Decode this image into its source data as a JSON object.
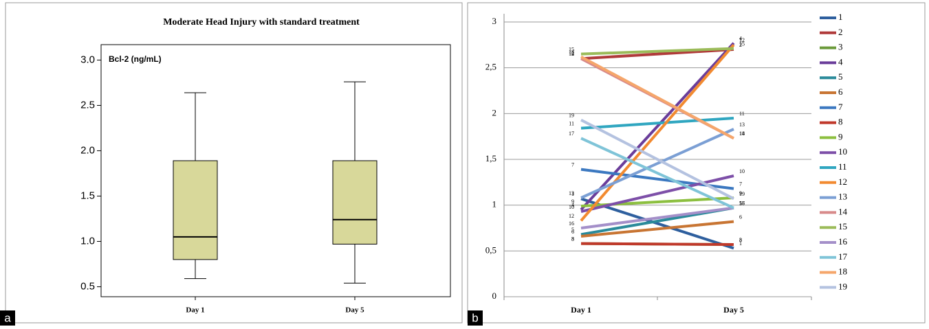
{
  "chart_data": [
    {
      "type": "box",
      "title": "Moderate Head Injury with standard treatment",
      "annotation": "Bcl-2 (ng/mL)",
      "panel": "a",
      "categories": [
        "Day 1",
        "Day 5"
      ],
      "boxes": [
        {
          "whislo": 0.59,
          "q1": 0.8,
          "med": 1.05,
          "q3": 1.89,
          "whishi": 2.64
        },
        {
          "whislo": 0.54,
          "q1": 0.97,
          "med": 1.24,
          "q3": 1.89,
          "whishi": 2.76
        }
      ],
      "color": "#d8d89a",
      "ylim": [
        0.39,
        3.17
      ],
      "yticks": [
        0.5,
        {
          "value": 1,
          "label": "1.0"
        },
        1.5,
        {
          "value": 2,
          "label": "2.0"
        },
        2.5,
        {
          "value": 3,
          "label": "3.0"
        }
      ]
    },
    {
      "type": "line",
      "panel": "b",
      "categories": [
        "Day 1",
        "Day 5"
      ],
      "grid": true,
      "legend": "right",
      "ylim": [
        0,
        3
      ],
      "yticks": [
        0,
        {
          "value": 0.5,
          "label": "0,5"
        },
        1,
        {
          "value": 1.5,
          "label": "1,5"
        },
        2,
        {
          "value": 2.5,
          "label": "2,5"
        },
        3
      ],
      "series": [
        {
          "name": "1",
          "color": "#2e5f9e",
          "values": [
            1.07,
            0.53
          ]
        },
        {
          "name": "2",
          "color": "#b03a3a",
          "values": [
            2.6,
            2.7
          ]
        },
        {
          "name": "3",
          "color": "#6b9a3a",
          "values": [
            0.58,
            0.57
          ]
        },
        {
          "name": "4",
          "color": "#6a3d9a",
          "values": [
            0.95,
            2.77
          ]
        },
        {
          "name": "5",
          "color": "#2a8a9a",
          "values": [
            0.68,
            0.97
          ]
        },
        {
          "name": "6",
          "color": "#c87533",
          "values": [
            0.66,
            0.82
          ]
        },
        {
          "name": "7",
          "color": "#3b78c0",
          "values": [
            1.39,
            1.18
          ]
        },
        {
          "name": "8",
          "color": "#c0392b",
          "values": [
            0.58,
            0.57
          ]
        },
        {
          "name": "9",
          "color": "#8cbf3f",
          "values": [
            0.99,
            1.08
          ]
        },
        {
          "name": "10",
          "color": "#7d4fa8",
          "values": [
            0.93,
            1.32
          ]
        },
        {
          "name": "11",
          "color": "#2fa6c0",
          "values": [
            1.84,
            1.95
          ]
        },
        {
          "name": "12",
          "color": "#f28a30",
          "values": [
            0.83,
            2.75
          ]
        },
        {
          "name": "13",
          "color": "#7b9fd4",
          "values": [
            1.08,
            1.83
          ]
        },
        {
          "name": "14",
          "color": "#d88a8a",
          "values": [
            2.6,
            1.73
          ]
        },
        {
          "name": "15",
          "color": "#9bbb59",
          "values": [
            2.65,
            2.71
          ]
        },
        {
          "name": "16",
          "color": "#a48fc9",
          "values": [
            0.75,
            0.97
          ]
        },
        {
          "name": "17",
          "color": "#7fc4d8",
          "values": [
            1.73,
            0.97
          ]
        },
        {
          "name": "18",
          "color": "#f5a66b",
          "values": [
            2.62,
            1.73
          ]
        },
        {
          "name": "19",
          "color": "#b4c2e0",
          "values": [
            1.93,
            1.07
          ]
        }
      ]
    }
  ]
}
